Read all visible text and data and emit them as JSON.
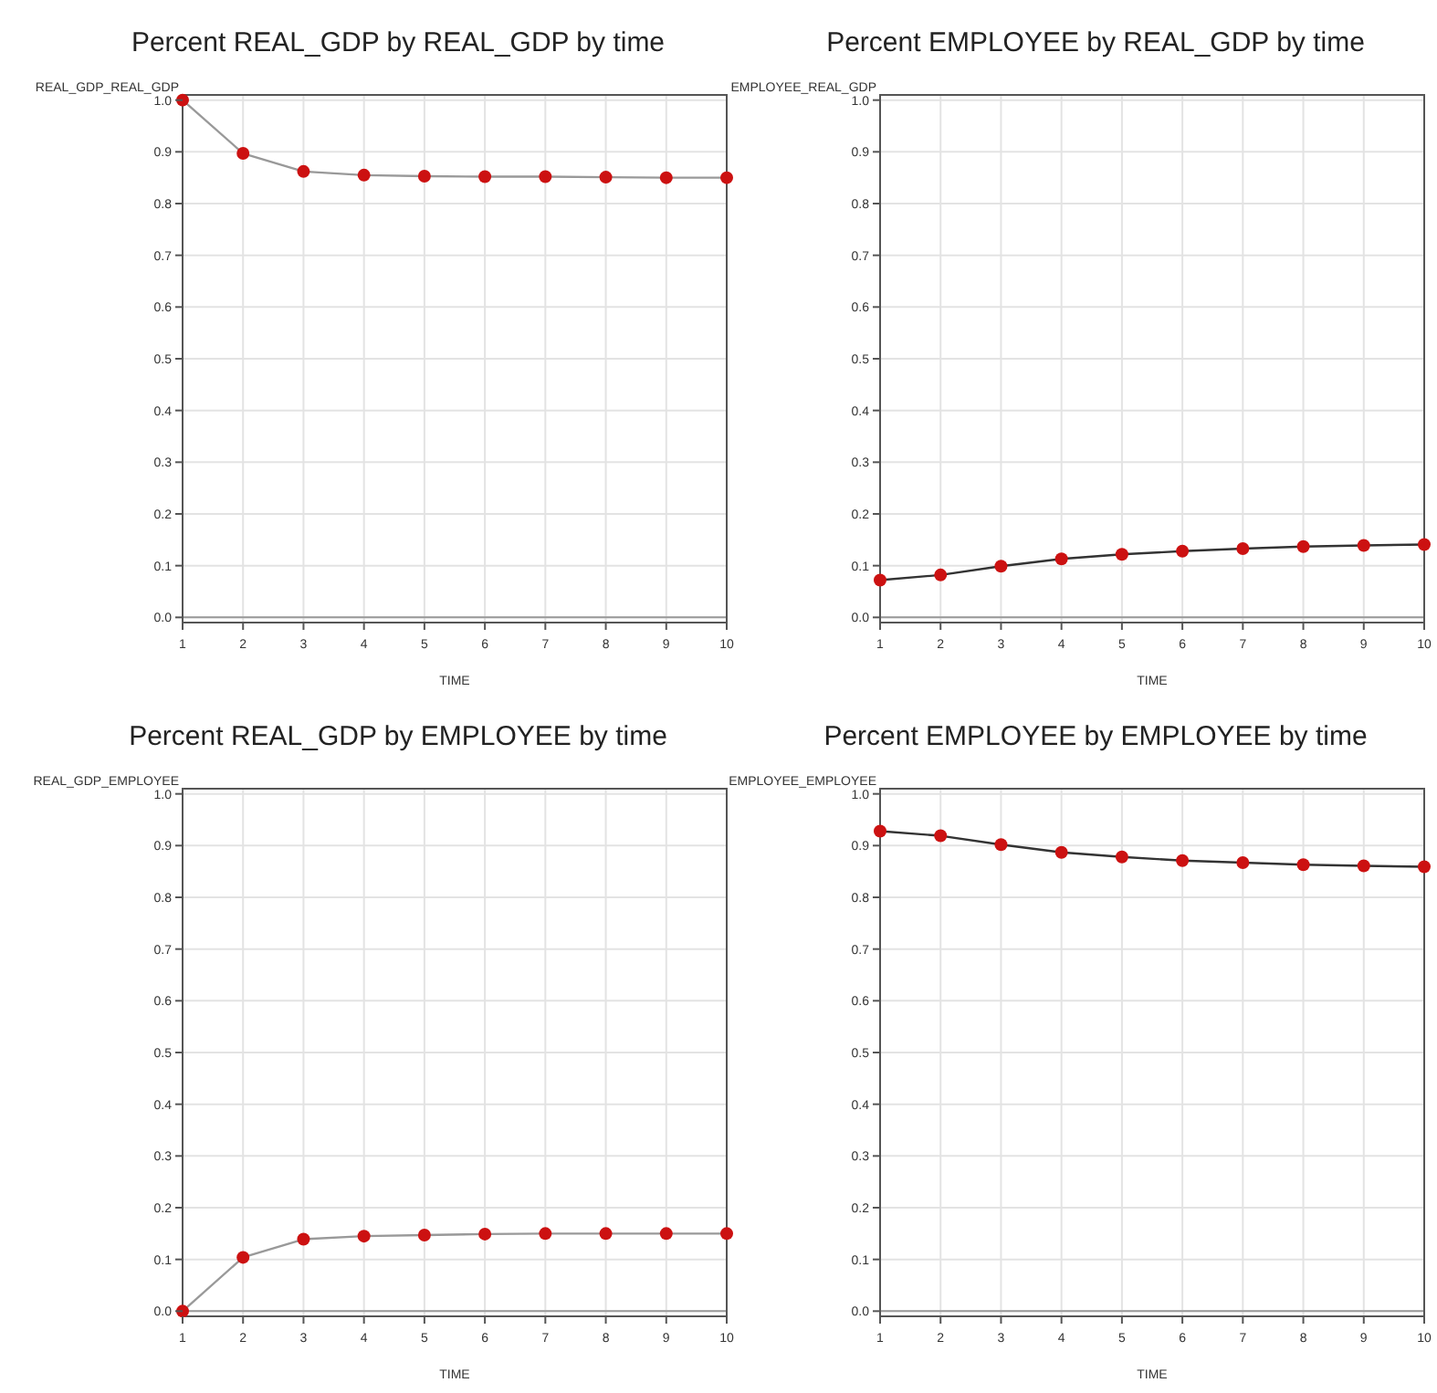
{
  "chart_data": [
    {
      "type": "line",
      "title": "Percent REAL_GDP by REAL_GDP by time",
      "xlabel": "TIME",
      "ylabel": "REAL_GDP_REAL_GDP",
      "x": [
        1,
        2,
        3,
        4,
        5,
        6,
        7,
        8,
        9,
        10
      ],
      "xlim": [
        1,
        10
      ],
      "xticks": [
        1,
        2,
        3,
        4,
        5,
        6,
        7,
        8,
        9,
        10
      ],
      "ylim": [
        -0.01,
        1.01
      ],
      "yticks": [
        {
          "value": 0,
          "label": "0.0"
        },
        {
          "value": 0.1,
          "label": "0.1"
        },
        {
          "value": 0.2,
          "label": "0.2"
        },
        {
          "value": 0.3,
          "label": "0.3"
        },
        {
          "value": 0.4,
          "label": "0.4"
        },
        {
          "value": 0.5,
          "label": "0.5"
        },
        {
          "value": 0.6,
          "label": "0.6"
        },
        {
          "value": 0.7,
          "label": "0.7"
        },
        {
          "value": 0.8,
          "label": "0.8"
        },
        {
          "value": 0.9,
          "label": "0.9"
        },
        {
          "value": 1,
          "label": "1.0"
        }
      ],
      "grid": true,
      "marker": "circle",
      "line_style": "solid",
      "series": [
        {
          "color": "#999999",
          "values": [
            1.0,
            0.897,
            0.862,
            0.855,
            0.853,
            0.852,
            0.852,
            0.851,
            0.85,
            0.85
          ]
        }
      ]
    },
    {
      "type": "line",
      "title": "Percent EMPLOYEE by REAL_GDP by time",
      "xlabel": "TIME",
      "ylabel": "EMPLOYEE_REAL_GDP",
      "x": [
        1,
        2,
        3,
        4,
        5,
        6,
        7,
        8,
        9,
        10
      ],
      "xlim": [
        1,
        10
      ],
      "xticks": [
        1,
        2,
        3,
        4,
        5,
        6,
        7,
        8,
        9,
        10
      ],
      "ylim": [
        -0.01,
        1.01
      ],
      "yticks": [
        {
          "value": 0,
          "label": "0.0"
        },
        {
          "value": 0.1,
          "label": "0.1"
        },
        {
          "value": 0.2,
          "label": "0.2"
        },
        {
          "value": 0.3,
          "label": "0.3"
        },
        {
          "value": 0.4,
          "label": "0.4"
        },
        {
          "value": 0.5,
          "label": "0.5"
        },
        {
          "value": 0.6,
          "label": "0.6"
        },
        {
          "value": 0.7,
          "label": "0.7"
        },
        {
          "value": 0.8,
          "label": "0.8"
        },
        {
          "value": 0.9,
          "label": "0.9"
        },
        {
          "value": 1,
          "label": "1.0"
        }
      ],
      "grid": true,
      "marker": "circle",
      "line_style": "solid",
      "series": [
        {
          "color": "#333333",
          "values": [
            0.072,
            0.082,
            0.099,
            0.113,
            0.122,
            0.128,
            0.133,
            0.137,
            0.139,
            0.141
          ]
        }
      ]
    },
    {
      "type": "line",
      "title": "Percent REAL_GDP by EMPLOYEE by time",
      "xlabel": "TIME",
      "ylabel": "REAL_GDP_EMPLOYEE",
      "x": [
        1,
        2,
        3,
        4,
        5,
        6,
        7,
        8,
        9,
        10
      ],
      "xlim": [
        1,
        10
      ],
      "xticks": [
        1,
        2,
        3,
        4,
        5,
        6,
        7,
        8,
        9,
        10
      ],
      "ylim": [
        -0.01,
        1.01
      ],
      "yticks": [
        {
          "value": 0,
          "label": "0.0"
        },
        {
          "value": 0.1,
          "label": "0.1"
        },
        {
          "value": 0.2,
          "label": "0.2"
        },
        {
          "value": 0.3,
          "label": "0.3"
        },
        {
          "value": 0.4,
          "label": "0.4"
        },
        {
          "value": 0.5,
          "label": "0.5"
        },
        {
          "value": 0.6,
          "label": "0.6"
        },
        {
          "value": 0.7,
          "label": "0.7"
        },
        {
          "value": 0.8,
          "label": "0.8"
        },
        {
          "value": 0.9,
          "label": "0.9"
        },
        {
          "value": 1,
          "label": "1.0"
        }
      ],
      "grid": true,
      "marker": "circle",
      "line_style": "solid",
      "series": [
        {
          "color": "#999999",
          "values": [
            0.0,
            0.104,
            0.139,
            0.145,
            0.147,
            0.149,
            0.15,
            0.15,
            0.15,
            0.15
          ]
        }
      ]
    },
    {
      "type": "line",
      "title": "Percent EMPLOYEE by EMPLOYEE by time",
      "xlabel": "TIME",
      "ylabel": "EMPLOYEE_EMPLOYEE",
      "x": [
        1,
        2,
        3,
        4,
        5,
        6,
        7,
        8,
        9,
        10
      ],
      "xlim": [
        1,
        10
      ],
      "xticks": [
        1,
        2,
        3,
        4,
        5,
        6,
        7,
        8,
        9,
        10
      ],
      "ylim": [
        -0.01,
        1.01
      ],
      "yticks": [
        {
          "value": 0,
          "label": "0.0"
        },
        {
          "value": 0.1,
          "label": "0.1"
        },
        {
          "value": 0.2,
          "label": "0.2"
        },
        {
          "value": 0.3,
          "label": "0.3"
        },
        {
          "value": 0.4,
          "label": "0.4"
        },
        {
          "value": 0.5,
          "label": "0.5"
        },
        {
          "value": 0.6,
          "label": "0.6"
        },
        {
          "value": 0.7,
          "label": "0.7"
        },
        {
          "value": 0.8,
          "label": "0.8"
        },
        {
          "value": 0.9,
          "label": "0.9"
        },
        {
          "value": 1,
          "label": "1.0"
        }
      ],
      "grid": true,
      "marker": "circle",
      "line_style": "solid",
      "series": [
        {
          "color": "#333333",
          "values": [
            0.928,
            0.919,
            0.902,
            0.887,
            0.878,
            0.871,
            0.867,
            0.863,
            0.861,
            0.859
          ]
        }
      ]
    }
  ]
}
